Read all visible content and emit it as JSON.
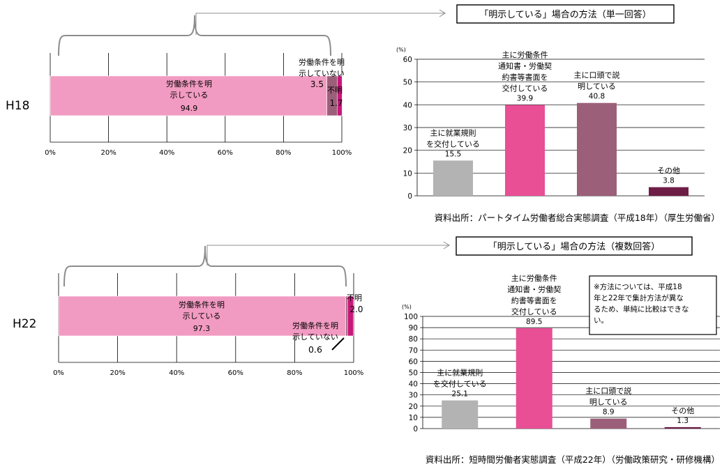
{
  "chart_data": [
    {
      "id": "h18-stacked",
      "type": "bar",
      "orientation": "horizontal",
      "stacked": true,
      "row_label": "H18",
      "xlim": [
        0,
        100
      ],
      "x_ticks": [
        "0%",
        "20%",
        "40%",
        "60%",
        "80%",
        "100%"
      ],
      "segments": [
        {
          "name": "労働条件を明示している",
          "label_lines": [
            "労働条件を明",
            "示している"
          ],
          "value": 94.9,
          "value_label": "94.9",
          "color": "#f29bc2"
        },
        {
          "name": "労働条件を明示していない",
          "label_lines": [
            "労働条件を明",
            "示していない"
          ],
          "value": 3.5,
          "value_label": "3.5",
          "color": "#9c5f7a"
        },
        {
          "name": "不明",
          "label_lines": [
            "不明"
          ],
          "value": 1.7,
          "value_label": "1.7",
          "color": "#c8187a"
        }
      ]
    },
    {
      "id": "h18-methods",
      "type": "bar",
      "title": "「明示している」場合の方法（単一回答）",
      "unit": "(%)",
      "ylim": [
        0,
        60
      ],
      "y_ticks": [
        "0",
        "10",
        "20",
        "30",
        "40",
        "50",
        "60"
      ],
      "categories": [
        {
          "label_lines": [
            "主に就業規則",
            "を交付している"
          ],
          "value": 15.5,
          "value_label": "15.5",
          "color": "#b3b3b3"
        },
        {
          "label_lines": [
            "主に労働条件",
            "通知書・労働契",
            "約書等書面を",
            "交付している"
          ],
          "value": 39.9,
          "value_label": "39.9",
          "color": "#e84f95"
        },
        {
          "label_lines": [
            "主に口頭で説",
            "明している"
          ],
          "value": 40.8,
          "value_label": "40.8",
          "color": "#9c5f7a"
        },
        {
          "label_lines": [
            "その他"
          ],
          "value": 3.8,
          "value_label": "3.8",
          "color": "#6e1e46"
        }
      ],
      "source": "資料出所：パートタイム労働者総合実態調査（平成18年）（厚生労働省）"
    },
    {
      "id": "h22-stacked",
      "type": "bar",
      "orientation": "horizontal",
      "stacked": true,
      "row_label": "H22",
      "xlim": [
        0,
        100
      ],
      "x_ticks": [
        "0%",
        "20%",
        "40%",
        "60%",
        "80%",
        "100%"
      ],
      "segments": [
        {
          "name": "労働条件を明示している",
          "label_lines": [
            "労働条件を明",
            "示している"
          ],
          "value": 97.3,
          "value_label": "97.3",
          "color": "#f29bc2"
        },
        {
          "name": "労働条件を明示していない",
          "label_lines": [
            "労働条件を明",
            "示していない"
          ],
          "value": 0.6,
          "value_label": "0.6",
          "color": "#9c5f7a"
        },
        {
          "name": "不明",
          "label_lines": [
            "不明"
          ],
          "value": 2.0,
          "value_label": "2.0",
          "color": "#c8187a"
        }
      ]
    },
    {
      "id": "h22-methods",
      "type": "bar",
      "title": "「明示している」場合の方法（複数回答）",
      "unit": "(%)",
      "ylim": [
        0,
        100
      ],
      "y_ticks": [
        "0",
        "10",
        "20",
        "30",
        "40",
        "50",
        "60",
        "70",
        "80",
        "90",
        "100"
      ],
      "categories": [
        {
          "label_lines": [
            "主に就業規則",
            "を交付している"
          ],
          "value": 25.1,
          "value_label": "25.1",
          "color": "#b3b3b3"
        },
        {
          "label_lines": [
            "主に労働条件",
            "通知書・労働契",
            "約書等書面を",
            "交付している"
          ],
          "value": 89.5,
          "value_label": "89.5",
          "color": "#e84f95"
        },
        {
          "label_lines": [
            "主に口頭で説",
            "明している"
          ],
          "value": 8.9,
          "value_label": "8.9",
          "color": "#9c5f7a"
        },
        {
          "label_lines": [
            "その他"
          ],
          "value": 1.3,
          "value_label": "1.3",
          "color": "#6e1e46"
        }
      ],
      "note_lines": [
        "※方法については、平成18",
        "年と22年で集計方法が異な",
        "るため、単純に比較はできな",
        "い。"
      ],
      "source": "資料出所：短時間労働者実態調査（平成22年）（労働政策研究・研修機構）"
    }
  ]
}
